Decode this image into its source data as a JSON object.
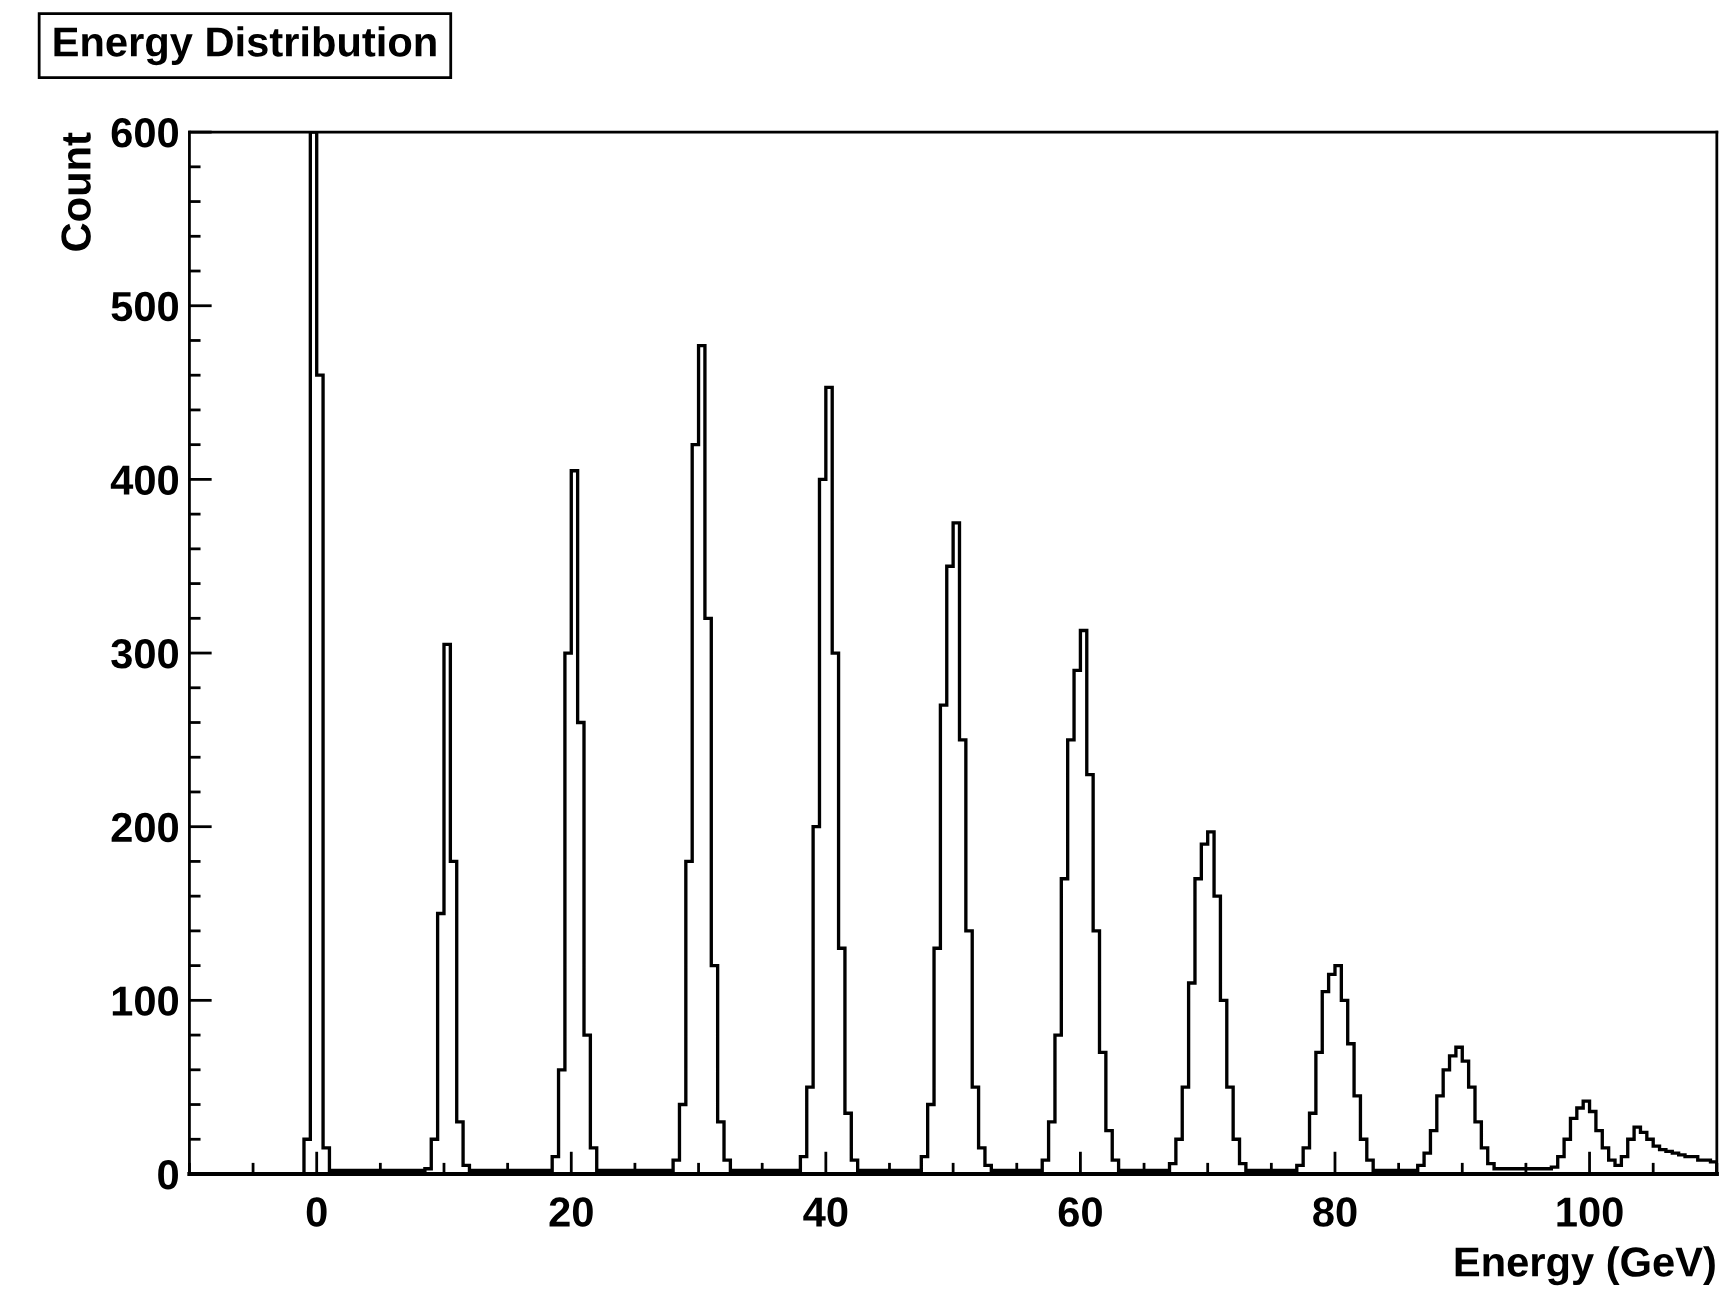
{
  "chart_data": {
    "type": "histogram",
    "title": "Energy Distribution",
    "xlabel": "Energy (GeV)",
    "ylabel": "Count",
    "bins": [
      -10,
      -9.5,
      -9,
      -8.5,
      -8,
      -7.5,
      -7,
      -6.5,
      -6,
      -5.5,
      -5,
      -4.5,
      -4,
      -3.5,
      -3,
      -2.5,
      -2,
      -1.5,
      -1,
      -0.5,
      0,
      0.5,
      1,
      1.5,
      2,
      2.5,
      3,
      3.5,
      4,
      4.5,
      5,
      5.5,
      6,
      6.5,
      7,
      7.5,
      8,
      8.5,
      9,
      9.5,
      10,
      10.5,
      11,
      11.5,
      12,
      12.5,
      13,
      13.5,
      14,
      14.5,
      15,
      15.5,
      16,
      16.5,
      17,
      17.5,
      18,
      18.5,
      19,
      19.5,
      20,
      20.5,
      21,
      21.5,
      22,
      22.5,
      23,
      23.5,
      24,
      24.5,
      25,
      25.5,
      26,
      26.5,
      27,
      27.5,
      28,
      28.5,
      29,
      29.5,
      30,
      30.5,
      31,
      31.5,
      32,
      32.5,
      33,
      33.5,
      34,
      34.5,
      35,
      35.5,
      36,
      36.5,
      37,
      37.5,
      38,
      38.5,
      39,
      39.5,
      40,
      40.5,
      41,
      41.5,
      42,
      42.5,
      43,
      43.5,
      44,
      44.5,
      45,
      45.5,
      46,
      46.5,
      47,
      47.5,
      48,
      48.5,
      49,
      49.5,
      50,
      50.5,
      51,
      51.5,
      52,
      52.5,
      53,
      53.5,
      54,
      54.5,
      55,
      55.5,
      56,
      56.5,
      57,
      57.5,
      58,
      58.5,
      59,
      59.5,
      60,
      60.5,
      61,
      61.5,
      62,
      62.5,
      63,
      63.5,
      64,
      64.5,
      65,
      65.5,
      66,
      66.5,
      67,
      67.5,
      68,
      68.5,
      69,
      69.5,
      70,
      70.5,
      71,
      71.5,
      72,
      72.5,
      73,
      73.5,
      74,
      74.5,
      75,
      75.5,
      76,
      76.5,
      77,
      77.5,
      78,
      78.5,
      79,
      79.5,
      80,
      80.5,
      81,
      81.5,
      82,
      82.5,
      83,
      83.5,
      84,
      84.5,
      85,
      85.5,
      86,
      86.5,
      87,
      87.5,
      88,
      88.5,
      89,
      89.5,
      90,
      90.5,
      91,
      91.5,
      92,
      92.5,
      93,
      93.5,
      94,
      94.5,
      95,
      95.5,
      96,
      96.5,
      97,
      97.5,
      98,
      98.5,
      99,
      99.5,
      100,
      100.5,
      101,
      101.5,
      102,
      102.5,
      103,
      103.5,
      104,
      104.5,
      105,
      105.5,
      106,
      106.5,
      107,
      107.5,
      108,
      108.5,
      109,
      109.5,
      110
    ],
    "values": [
      0,
      0,
      0,
      0,
      0,
      0,
      0,
      0,
      0,
      0,
      0,
      0,
      0,
      0,
      0,
      0,
      0,
      0,
      20,
      600,
      460,
      15,
      2,
      2,
      2,
      2,
      2,
      2,
      2,
      2,
      2,
      2,
      2,
      2,
      2,
      2,
      2,
      3,
      20,
      150,
      305,
      180,
      30,
      5,
      2,
      2,
      2,
      2,
      2,
      2,
      2,
      2,
      2,
      2,
      2,
      2,
      2,
      10,
      60,
      300,
      405,
      260,
      80,
      15,
      2,
      2,
      2,
      2,
      2,
      2,
      2,
      2,
      2,
      2,
      2,
      2,
      8,
      40,
      180,
      420,
      477,
      320,
      120,
      30,
      8,
      2,
      2,
      2,
      2,
      2,
      2,
      2,
      2,
      2,
      2,
      2,
      10,
      50,
      200,
      400,
      453,
      300,
      130,
      35,
      8,
      2,
      2,
      2,
      2,
      2,
      2,
      2,
      2,
      2,
      2,
      10,
      40,
      130,
      270,
      350,
      375,
      250,
      140,
      50,
      15,
      5,
      2,
      2,
      2,
      2,
      2,
      2,
      2,
      2,
      8,
      30,
      80,
      170,
      250,
      290,
      313,
      230,
      140,
      70,
      25,
      8,
      2,
      2,
      2,
      2,
      2,
      2,
      2,
      2,
      6,
      20,
      50,
      110,
      170,
      190,
      197,
      160,
      100,
      50,
      20,
      6,
      2,
      2,
      2,
      2,
      2,
      2,
      2,
      2,
      5,
      15,
      35,
      70,
      105,
      115,
      120,
      100,
      75,
      45,
      20,
      8,
      2,
      2,
      2,
      2,
      2,
      2,
      2,
      5,
      12,
      25,
      45,
      60,
      68,
      73,
      65,
      50,
      30,
      15,
      6,
      3,
      3,
      3,
      3,
      3,
      3,
      3,
      3,
      3,
      4,
      10,
      20,
      32,
      38,
      42,
      36,
      25,
      15,
      8,
      5,
      10,
      20,
      27,
      24,
      20,
      16,
      14,
      13,
      12,
      11,
      10,
      10,
      8,
      8,
      7
    ],
    "color": "#000000",
    "xlim": [
      -10,
      110
    ],
    "xticks": [
      0,
      20,
      40,
      60,
      80,
      100
    ],
    "ylim": [
      0,
      600
    ],
    "yticks": [
      0,
      100,
      200,
      300,
      400,
      500,
      600
    ],
    "grid": false
  }
}
